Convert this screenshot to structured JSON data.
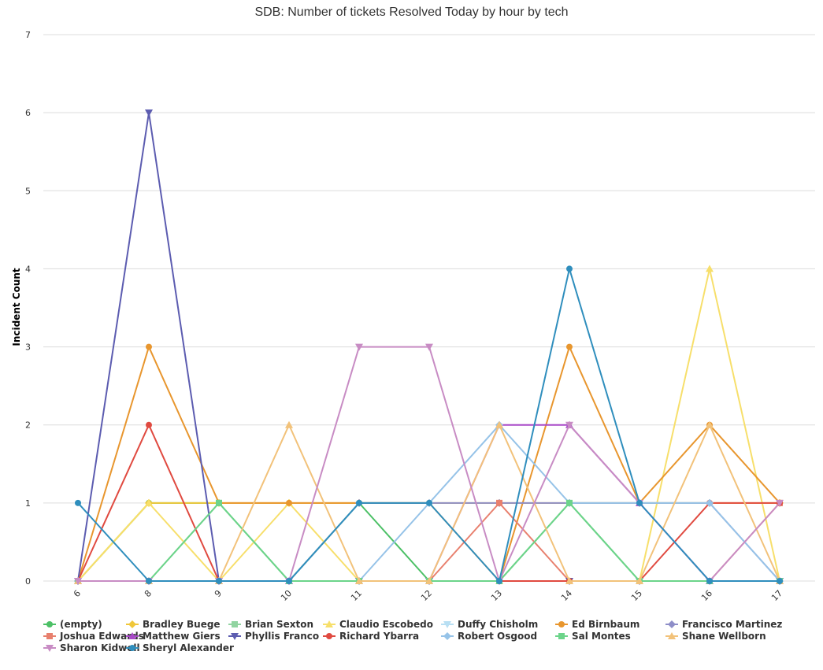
{
  "chart_data": {
    "type": "line",
    "title": "SDB: Number of tickets Resolved Today by hour by tech",
    "xlabel": "",
    "ylabel": "Incident Count",
    "x": [
      "6",
      "8",
      "9",
      "10",
      "11",
      "12",
      "13",
      "14",
      "15",
      "16",
      "17"
    ],
    "ylim": [
      0,
      7
    ],
    "yticks": [
      "0",
      "1",
      "2",
      "3",
      "4",
      "5",
      "6",
      "7"
    ],
    "grid": true,
    "legend_position": "bottom",
    "series": [
      {
        "name": "(empty)",
        "color": "#4cc066",
        "marker": "circle",
        "values": [
          0,
          1,
          1,
          0,
          1,
          0,
          0,
          1,
          0,
          0,
          0
        ]
      },
      {
        "name": "Bradley Buege",
        "color": "#f0c73a",
        "marker": "diamond",
        "values": [
          0,
          1,
          1,
          1,
          1,
          1,
          1,
          1,
          1,
          1,
          1
        ]
      },
      {
        "name": "Brian Sexton",
        "color": "#91d4a1",
        "marker": "square",
        "values": [
          0,
          0,
          1,
          0,
          0,
          0,
          0,
          0,
          0,
          0,
          0
        ]
      },
      {
        "name": "Claudio Escobedo",
        "color": "#f7df6b",
        "marker": "triangle",
        "values": [
          0,
          1,
          0,
          1,
          0,
          0,
          0,
          0,
          0,
          4,
          0
        ]
      },
      {
        "name": "Duffy Chisholm",
        "color": "#b8dff3",
        "marker": "triangle-down",
        "values": [
          0,
          0,
          0,
          0,
          0,
          0,
          0,
          0,
          0,
          0,
          0
        ]
      },
      {
        "name": "Ed Birnbaum",
        "color": "#e8962e",
        "marker": "circle",
        "values": [
          0,
          3,
          1,
          1,
          1,
          1,
          0,
          3,
          1,
          2,
          1
        ]
      },
      {
        "name": "Francisco Martinez",
        "color": "#8e8ec8",
        "marker": "diamond",
        "values": [
          0,
          0,
          0,
          0,
          1,
          1,
          1,
          1,
          1,
          1,
          0
        ]
      },
      {
        "name": "Joshua Edwards",
        "color": "#e8806e",
        "marker": "square",
        "values": [
          0,
          0,
          0,
          0,
          0,
          0,
          1,
          0,
          0,
          0,
          1
        ]
      },
      {
        "name": "Matthew Giers",
        "color": "#a849c8",
        "marker": "triangle",
        "values": [
          0,
          0,
          0,
          0,
          0,
          0,
          2,
          2,
          1,
          0,
          0
        ]
      },
      {
        "name": "Phyllis Franco",
        "color": "#5c5cb0",
        "marker": "triangle-down",
        "values": [
          0,
          6,
          0,
          0,
          0,
          0,
          0,
          0,
          0,
          0,
          0
        ]
      },
      {
        "name": "Richard Ybarra",
        "color": "#e04a40",
        "marker": "circle",
        "values": [
          0,
          2,
          0,
          0,
          0,
          0,
          0,
          0,
          0,
          1,
          1
        ]
      },
      {
        "name": "Robert Osgood",
        "color": "#96c3e8",
        "marker": "diamond",
        "values": [
          0,
          0,
          0,
          0,
          0,
          1,
          2,
          1,
          1,
          1,
          0
        ]
      },
      {
        "name": "Sal Montes",
        "color": "#6cd48a",
        "marker": "square",
        "values": [
          0,
          0,
          1,
          0,
          0,
          0,
          0,
          1,
          0,
          0,
          0
        ]
      },
      {
        "name": "Shane Wellborn",
        "color": "#f2c27a",
        "marker": "triangle",
        "values": [
          0,
          0,
          0,
          2,
          0,
          0,
          2,
          0,
          0,
          2,
          0
        ]
      },
      {
        "name": "Sharon Kidwell",
        "color": "#c88cc4",
        "marker": "triangle-down",
        "values": [
          0,
          0,
          0,
          0,
          3,
          3,
          0,
          2,
          1,
          0,
          1
        ]
      },
      {
        "name": "Sheryl Alexander",
        "color": "#2f8ebd",
        "marker": "circle",
        "values": [
          1,
          0,
          0,
          0,
          1,
          1,
          0,
          4,
          1,
          0,
          0
        ]
      }
    ]
  }
}
